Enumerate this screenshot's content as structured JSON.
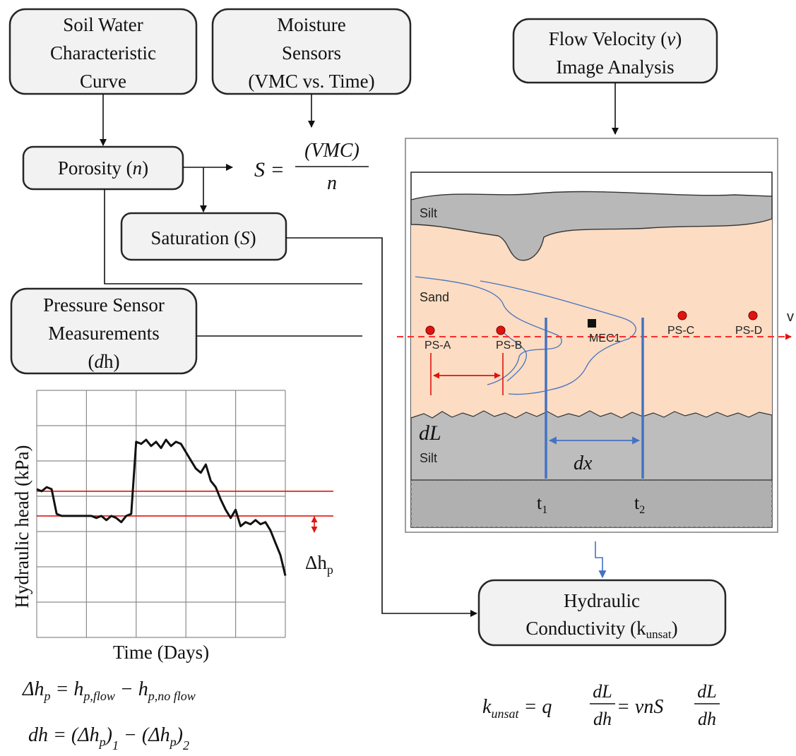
{
  "boxes": {
    "swcc": [
      "Soil Water",
      "Characteristic",
      "Curve"
    ],
    "moisture": [
      "Moisture",
      "Sensors",
      "(VMC vs. Time)"
    ],
    "flow_velocity": {
      "line1": "Flow Velocity (",
      "var": "v",
      "line1_end": ")",
      "line2": "Image Analysis"
    },
    "porosity": {
      "text": "Porosity (",
      "var": "n",
      "end": ")"
    },
    "saturation": {
      "text": "Saturation (",
      "var": "S",
      "end": ")"
    },
    "pressure": {
      "line1": "Pressure Sensor",
      "line2": "Measurements",
      "line3_open": "(",
      "line3_var": "d",
      "line3_end": "h)"
    },
    "hydraulic": {
      "line1": "Hydraulic",
      "line2": "Conductivity (k",
      "sub": "unsat",
      "end": ")"
    }
  },
  "equations": {
    "saturation": {
      "lhs": "S =",
      "num": "(VMC)",
      "den": "n"
    },
    "delta_hp": {
      "lhs": "Δh",
      "lhs_sub": "p",
      "eq": " = h",
      "t1_sub": "p,flow",
      "minus": " − h",
      "t2_sub": "p,no flow"
    },
    "dh": {
      "lhs": "dh = (Δh",
      "s1": "p",
      "close1": ")",
      "i1": "1",
      "minus": " − (Δh",
      "s2": "p",
      "close2": ")",
      "i2": "2"
    },
    "kunsat": {
      "k": "k",
      "k_sub": "unsat",
      "eq1": " = q",
      "num1": "dL",
      "den1": "dh",
      "eq2": " = vnS",
      "num2": "dL",
      "den2": "dh"
    }
  },
  "profile": {
    "layers": {
      "silt_top": "Silt",
      "sand": "Sand",
      "silt_bottom": "Silt"
    },
    "sensors": [
      "PS-A",
      "PS-B",
      "MEC1",
      "PS-C",
      "PS-D"
    ],
    "velocity_label": "v",
    "dL_label": "dL",
    "dx_label": "dx",
    "t1": {
      "t": "t",
      "sub": "1"
    },
    "t2": {
      "t": "t",
      "sub": "2"
    }
  },
  "chart_data": {
    "type": "line",
    "xlabel": "Time (Days)",
    "ylabel": "Hydraulic head (kPa)",
    "delta_label": {
      "text": "Δh",
      "sub": "p"
    },
    "x": [
      0,
      2,
      4,
      6,
      8,
      10,
      12,
      14,
      16,
      18,
      20,
      22,
      24,
      26,
      28,
      30,
      32,
      34,
      36,
      38,
      40,
      42,
      44,
      46,
      48,
      50,
      52,
      54,
      56,
      58,
      60,
      62,
      64,
      66,
      68,
      70,
      72,
      74,
      76,
      78,
      80,
      82,
      84,
      86,
      88,
      90,
      92,
      94,
      96,
      98,
      100
    ],
    "values": [
      72,
      71,
      73,
      72,
      60,
      59,
      59,
      59,
      59,
      59,
      59,
      59,
      58,
      59,
      57,
      59,
      58,
      56,
      59,
      60,
      95,
      94,
      96,
      93,
      95,
      92,
      96,
      93,
      95,
      94,
      90,
      86,
      82,
      80,
      84,
      76,
      73,
      67,
      62,
      58,
      62,
      54,
      56,
      55,
      57,
      55,
      56,
      52,
      46,
      40,
      30
    ],
    "xlim": [
      0,
      100
    ],
    "ylim": [
      0,
      120
    ],
    "reference_lines": [
      71,
      59
    ],
    "grid": true
  },
  "colors": {
    "sand": "#fcdcc2",
    "silt": "#b8b8b8",
    "base": "#b0b0b0",
    "flow_line": "#ff2d2d",
    "blue": "#4472c4",
    "sensor": "#e0140f"
  }
}
